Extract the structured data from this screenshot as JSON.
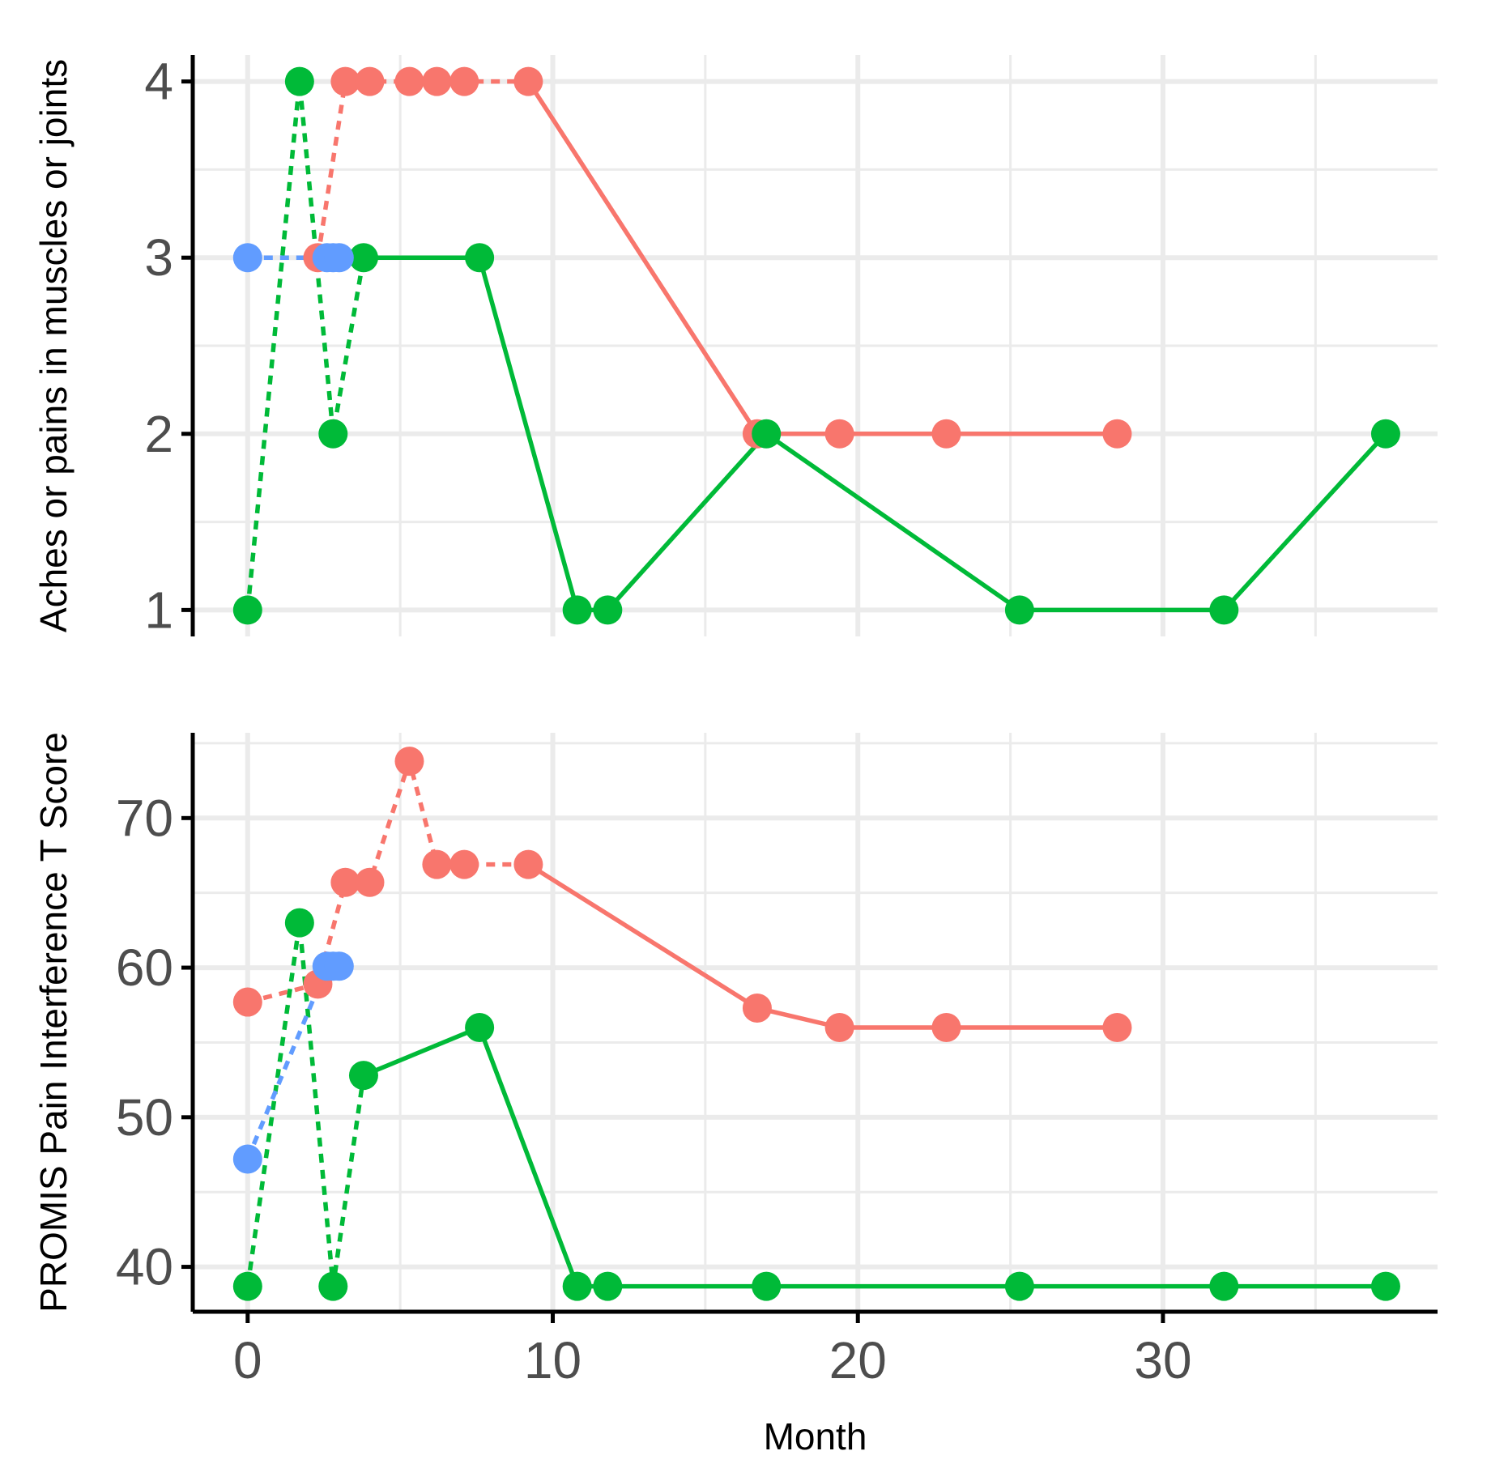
{
  "chart_data": {
    "type": "line",
    "xlabel": "Month",
    "xlim": [
      -1.8,
      39
    ],
    "xticks": [
      0,
      10,
      20,
      30
    ],
    "colors": {
      "red": "#F8766D",
      "green": "#00BA38",
      "blue": "#619CFF"
    },
    "panels": [
      {
        "ylabel": "Aches or pains in muscles or joints",
        "ylim": [
          0.85,
          4.15
        ],
        "yticks": [
          1,
          2,
          3,
          4
        ],
        "series": [
          {
            "color": "red",
            "segments": [
              {
                "style": "dashed",
                "points": [
                  [
                    2.3,
                    3
                  ],
                  [
                    3.2,
                    4
                  ],
                  [
                    4.0,
                    4
                  ],
                  [
                    5.3,
                    4
                  ],
                  [
                    6.2,
                    4
                  ],
                  [
                    7.1,
                    4
                  ],
                  [
                    9.2,
                    4
                  ]
                ]
              },
              {
                "style": "solid",
                "points": [
                  [
                    9.2,
                    4
                  ],
                  [
                    16.7,
                    2
                  ],
                  [
                    19.4,
                    2
                  ],
                  [
                    22.9,
                    2
                  ],
                  [
                    28.5,
                    2
                  ]
                ]
              }
            ]
          },
          {
            "color": "green",
            "segments": [
              {
                "style": "dashed",
                "points": [
                  [
                    0,
                    1
                  ],
                  [
                    1.7,
                    4
                  ],
                  [
                    2.8,
                    2
                  ],
                  [
                    3.8,
                    3
                  ]
                ]
              },
              {
                "style": "solid",
                "points": [
                  [
                    3.8,
                    3
                  ],
                  [
                    7.6,
                    3
                  ],
                  [
                    10.8,
                    1
                  ],
                  [
                    11.8,
                    1
                  ],
                  [
                    17.0,
                    2
                  ],
                  [
                    25.3,
                    1
                  ],
                  [
                    32.0,
                    1
                  ],
                  [
                    37.3,
                    2
                  ]
                ]
              }
            ]
          },
          {
            "color": "blue",
            "segments": [
              {
                "style": "dashed",
                "points": [
                  [
                    0,
                    3
                  ],
                  [
                    2.6,
                    3
                  ],
                  [
                    2.8,
                    3
                  ],
                  [
                    3.0,
                    3
                  ]
                ]
              }
            ]
          }
        ]
      },
      {
        "ylabel": "PROMIS Pain Interference T Score",
        "ylim": [
          37,
          75.7
        ],
        "yticks": [
          40,
          50,
          60,
          70
        ],
        "series": [
          {
            "color": "red",
            "segments": [
              {
                "style": "dashed",
                "points": [
                  [
                    0,
                    57.7
                  ],
                  [
                    2.3,
                    58.9
                  ],
                  [
                    3.2,
                    65.7
                  ],
                  [
                    4.0,
                    65.7
                  ],
                  [
                    5.3,
                    73.8
                  ],
                  [
                    6.2,
                    66.9
                  ],
                  [
                    7.1,
                    66.9
                  ],
                  [
                    9.2,
                    66.9
                  ]
                ]
              },
              {
                "style": "solid",
                "points": [
                  [
                    9.2,
                    66.9
                  ],
                  [
                    16.7,
                    57.3
                  ],
                  [
                    19.4,
                    56.0
                  ],
                  [
                    22.9,
                    56.0
                  ],
                  [
                    28.5,
                    56.0
                  ]
                ]
              }
            ]
          },
          {
            "color": "green",
            "segments": [
              {
                "style": "dashed",
                "points": [
                  [
                    0,
                    38.7
                  ],
                  [
                    1.7,
                    63.0
                  ],
                  [
                    2.8,
                    38.7
                  ],
                  [
                    3.8,
                    52.8
                  ]
                ]
              },
              {
                "style": "solid",
                "points": [
                  [
                    3.8,
                    52.8
                  ],
                  [
                    7.6,
                    56.0
                  ],
                  [
                    10.8,
                    38.7
                  ],
                  [
                    11.8,
                    38.7
                  ],
                  [
                    17.0,
                    38.7
                  ],
                  [
                    25.3,
                    38.7
                  ],
                  [
                    32.0,
                    38.7
                  ],
                  [
                    37.3,
                    38.7
                  ]
                ]
              }
            ]
          },
          {
            "color": "blue",
            "segments": [
              {
                "style": "dashed",
                "points": [
                  [
                    0,
                    47.2
                  ],
                  [
                    2.6,
                    60.1
                  ],
                  [
                    2.8,
                    60.1
                  ],
                  [
                    3.0,
                    60.1
                  ]
                ]
              }
            ]
          }
        ]
      }
    ]
  }
}
